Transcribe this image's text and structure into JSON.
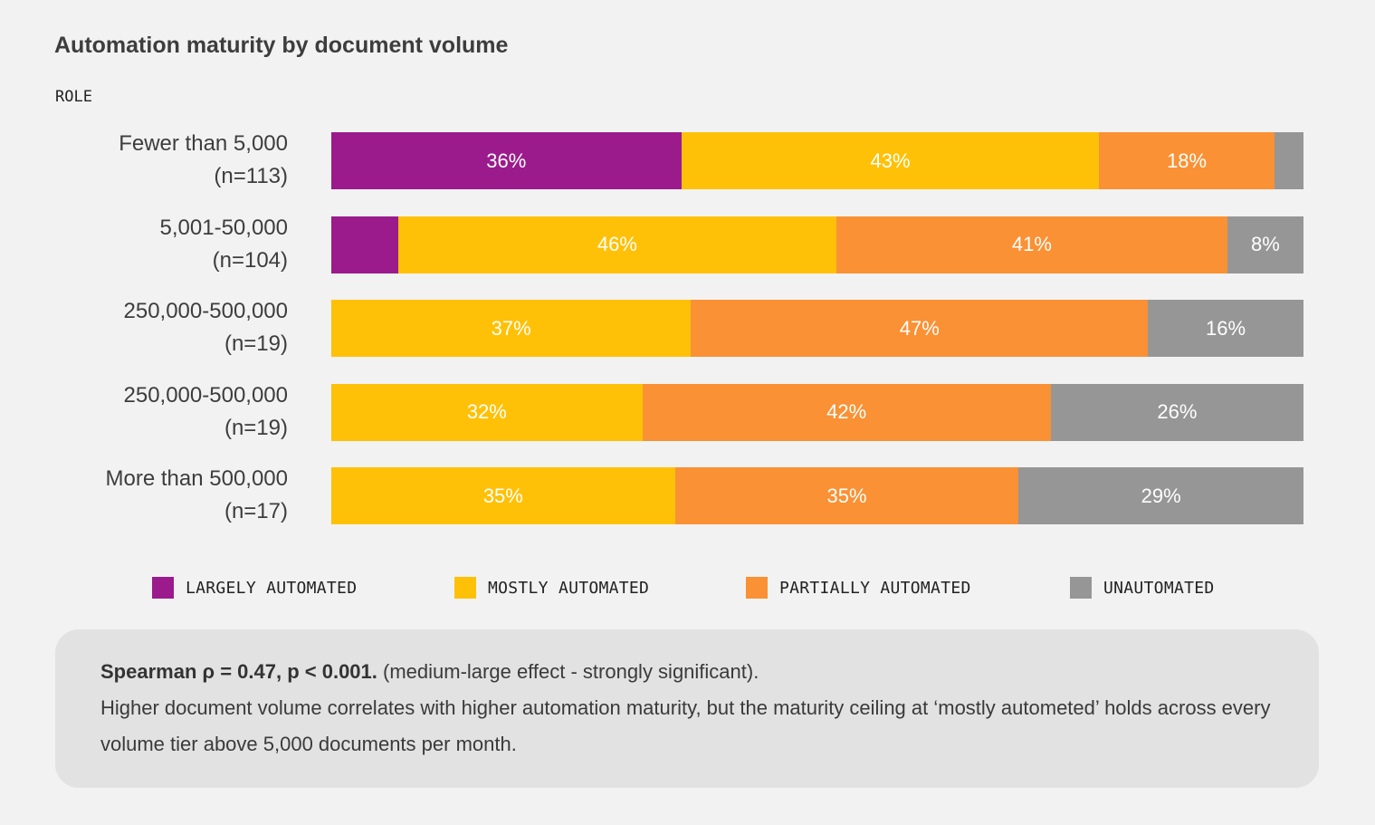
{
  "chart_data": {
    "type": "bar",
    "orientation": "horizontal",
    "stacked": true,
    "title": "Automation maturity by document volume",
    "y_axis_heading": "ROLE",
    "categories": [
      {
        "name": "Fewer than 5,000",
        "n": "(n=113)"
      },
      {
        "name": "5,001-50,000",
        "n": "(n=104)"
      },
      {
        "name": "250,000-500,000",
        "n": "(n=19)"
      },
      {
        "name": "250,000-500,000",
        "n": "(n=19)"
      },
      {
        "name": "More than 500,000",
        "n": "(n=17)"
      }
    ],
    "series": [
      {
        "name": "LARGELY AUTOMATED",
        "color": "#9b1b8c",
        "values": [
          36,
          7,
          0,
          0,
          0
        ],
        "labels": [
          "36%",
          "",
          "",
          "",
          ""
        ]
      },
      {
        "name": "MOSTLY AUTOMATED",
        "color": "#ffc107",
        "values": [
          43,
          46,
          37,
          32,
          35
        ],
        "labels": [
          "43%",
          "46%",
          "37%",
          "32%",
          "35%"
        ]
      },
      {
        "name": "PARTIALLY AUTOMATED",
        "color": "#fa9134",
        "values": [
          18,
          41,
          47,
          42,
          35
        ],
        "labels": [
          "18%",
          "41%",
          "47%",
          "42%",
          "35%"
        ]
      },
      {
        "name": "UNAUTOMATED",
        "color": "#969696",
        "values": [
          3,
          8,
          16,
          26,
          29
        ],
        "labels": [
          "",
          "8%",
          "16%",
          "26%",
          "29%"
        ]
      }
    ],
    "xlim": [
      0,
      100
    ],
    "legend": "bottom"
  },
  "note": {
    "bold": "Spearman ρ = 0.47, p < 0.001.",
    "rest": " (medium-large effect - strongly significant).",
    "line2": "Higher document volume correlates with higher automation maturity, but the maturity ceiling at ‘mostly autometed’ holds across every volume tier above 5,000 documents per month."
  }
}
